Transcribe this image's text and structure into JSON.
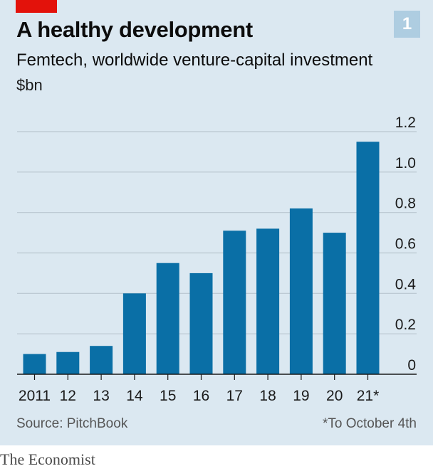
{
  "header": {
    "title": "A healthy development",
    "chart_number": "1",
    "subtitle": "Femtech, worldwide venture-capital investment",
    "unit": "$bn"
  },
  "footer": {
    "source": "Source: PitchBook",
    "note": "*To October 4th",
    "brand": "The Economist"
  },
  "colors": {
    "bar": "#0a6fa6",
    "background": "#dbe8f1",
    "accent": "#e3120b",
    "gridline": "#b9c6cf"
  },
  "chart_data": {
    "type": "bar",
    "title": "A healthy development",
    "subtitle": "Femtech, worldwide venture-capital investment",
    "ylabel": "$bn",
    "xlabel": "",
    "categories": [
      "2011",
      "12",
      "13",
      "14",
      "15",
      "16",
      "17",
      "18",
      "19",
      "20",
      "21*"
    ],
    "values": [
      0.1,
      0.11,
      0.14,
      0.4,
      0.55,
      0.5,
      0.71,
      0.72,
      0.82,
      0.7,
      1.15
    ],
    "ylim": [
      0,
      1.2
    ],
    "yticks": [
      0,
      0.2,
      0.4,
      0.6,
      0.8,
      1.0,
      1.2
    ],
    "ytick_labels": [
      "0",
      "0.2",
      "0.4",
      "0.6",
      "0.8",
      "1.0",
      "1.2"
    ],
    "grid": true
  }
}
